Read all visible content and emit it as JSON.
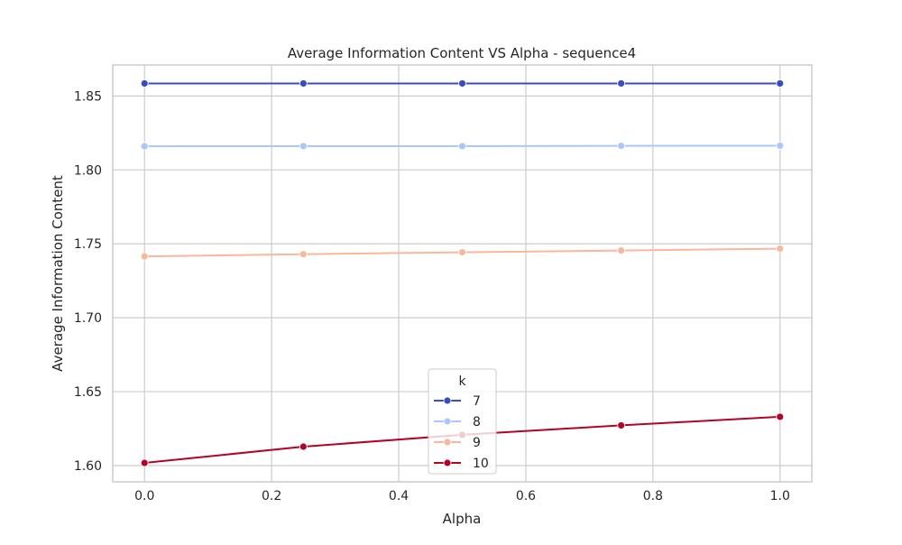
{
  "chart_data": {
    "type": "line",
    "title": "Average Information Content VS Alpha - sequence4",
    "xlabel": "Alpha",
    "ylabel": "Average Information Content",
    "xlim": [
      -0.05,
      1.05
    ],
    "ylim": [
      1.589,
      1.871
    ],
    "x_ticks": [
      0.0,
      0.2,
      0.4,
      0.6,
      0.8,
      1.0
    ],
    "x_tick_labels": [
      "0.0",
      "0.2",
      "0.4",
      "0.6",
      "0.8",
      "1.0"
    ],
    "y_ticks": [
      1.6,
      1.65,
      1.7,
      1.75,
      1.8,
      1.85
    ],
    "y_tick_labels": [
      "1.60",
      "1.65",
      "1.70",
      "1.75",
      "1.80",
      "1.85"
    ],
    "grid": true,
    "x": [
      0.0,
      0.25,
      0.5,
      0.75,
      1.0
    ],
    "legend": {
      "title": "k",
      "position": "lower-center"
    },
    "series": [
      {
        "name": "7",
        "color": "#3b4cc0",
        "values": [
          1.8585,
          1.8585,
          1.8585,
          1.8585,
          1.8585
        ]
      },
      {
        "name": "8",
        "color": "#aac7fd",
        "values": [
          1.816,
          1.8161,
          1.8161,
          1.8163,
          1.8164
        ]
      },
      {
        "name": "9",
        "color": "#f7b89c",
        "values": [
          1.7415,
          1.743,
          1.7443,
          1.7455,
          1.7467
        ]
      },
      {
        "name": "10",
        "color": "#b40426",
        "values": [
          1.6018,
          1.6128,
          1.6208,
          1.6272,
          1.633
        ]
      }
    ]
  }
}
